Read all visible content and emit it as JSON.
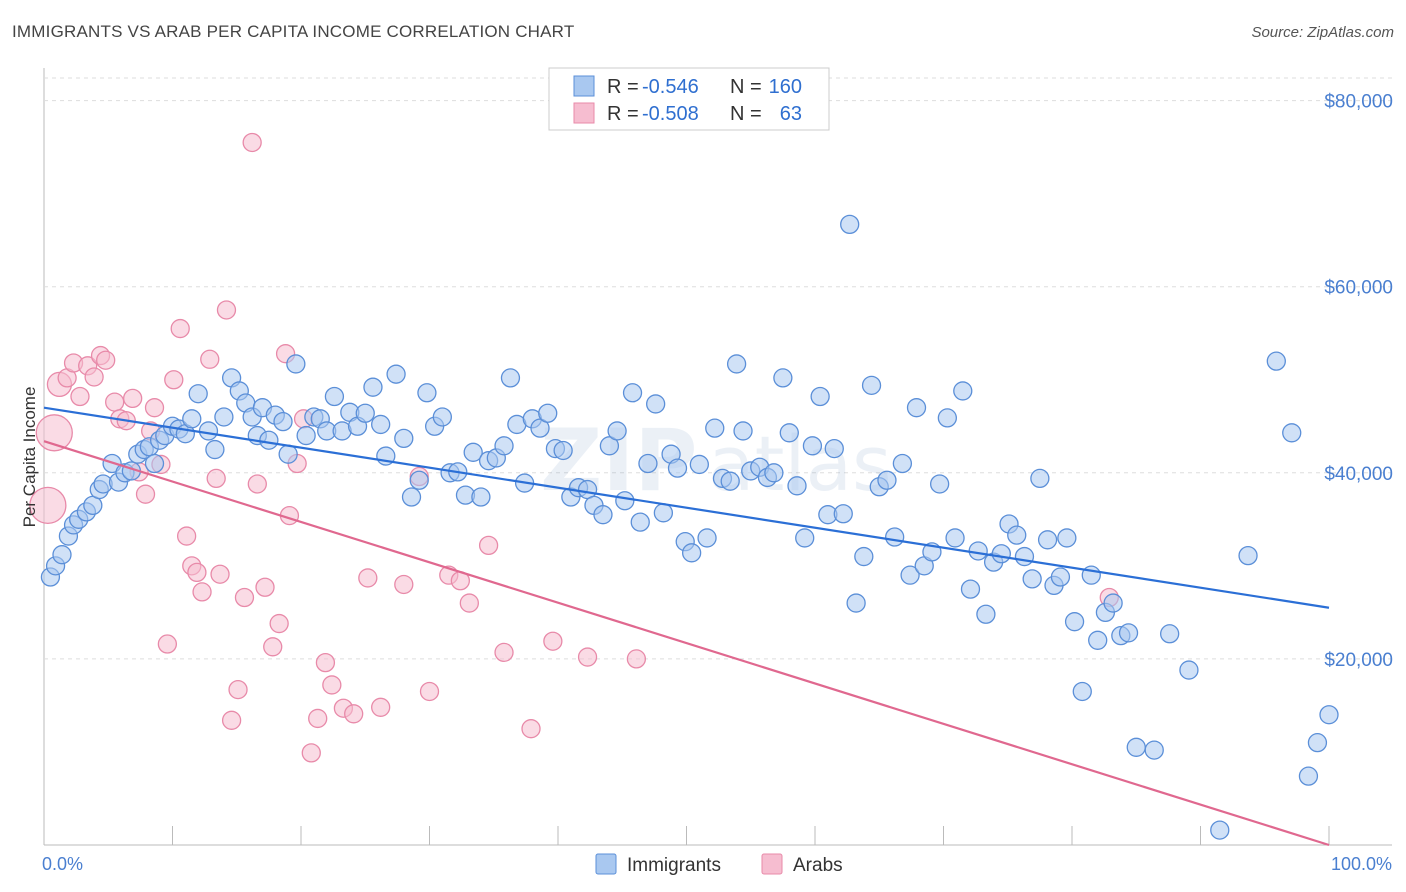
{
  "title": "IMMIGRANTS VS ARAB PER CAPITA INCOME CORRELATION CHART",
  "source": "Source: ZipAtlas.com",
  "watermark": "ZIPatlas",
  "colors": {
    "immigrants_fill": "#a9c8f0",
    "immigrants_stroke": "#5b8fd8",
    "immigrants_line": "#2b6fd6",
    "arabs_fill": "#f6bdd0",
    "arabs_stroke": "#e88aa9",
    "arabs_line": "#e0688f",
    "tick_text": "#4a7fd0",
    "grid": "#dddddd"
  },
  "chart_data": {
    "type": "scatter",
    "title": "IMMIGRANTS VS ARAB PER CAPITA INCOME CORRELATION CHART",
    "xlabel": "",
    "ylabel": "Per Capita Income",
    "xlim": [
      0,
      100
    ],
    "ylim": [
      0,
      82000
    ],
    "x_tick_labels": [
      "0.0%",
      "100.0%"
    ],
    "y_ticks": [
      20000,
      40000,
      60000,
      80000
    ],
    "y_tick_labels": [
      "$20,000",
      "$40,000",
      "$60,000",
      "$80,000"
    ],
    "grid": "horizontal dashed",
    "legend_position": "top-center",
    "stats": [
      {
        "label_r": "R =",
        "r": "-0.546",
        "label_n": "N =",
        "n": "160"
      },
      {
        "label_r": "R =",
        "r": "-0.508",
        "label_n": "N =",
        "n": "63"
      }
    ],
    "series": [
      {
        "name": "Immigrants",
        "trend": {
          "x": [
            0,
            100
          ],
          "y": [
            47000,
            25500
          ]
        },
        "points": [
          [
            0.5,
            28800
          ],
          [
            0.9,
            30000
          ],
          [
            1.4,
            31200
          ],
          [
            1.9,
            33200
          ],
          [
            2.3,
            34400
          ],
          [
            2.7,
            35000
          ],
          [
            3.3,
            35800
          ],
          [
            3.8,
            36500
          ],
          [
            4.3,
            38200
          ],
          [
            4.6,
            38800
          ],
          [
            5.3,
            41000
          ],
          [
            5.8,
            39000
          ],
          [
            6.3,
            40000
          ],
          [
            6.8,
            40200
          ],
          [
            7.3,
            42000
          ],
          [
            7.8,
            42500
          ],
          [
            8.2,
            42800
          ],
          [
            8.6,
            41000
          ],
          [
            9.0,
            43500
          ],
          [
            9.4,
            44000
          ],
          [
            10.0,
            45000
          ],
          [
            10.5,
            44700
          ],
          [
            11.0,
            44200
          ],
          [
            11.5,
            45800
          ],
          [
            12.0,
            48500
          ],
          [
            12.8,
            44500
          ],
          [
            13.3,
            42500
          ],
          [
            14.0,
            46000
          ],
          [
            14.6,
            50200
          ],
          [
            15.2,
            48800
          ],
          [
            15.7,
            47500
          ],
          [
            16.2,
            46000
          ],
          [
            16.6,
            44000
          ],
          [
            17.0,
            47000
          ],
          [
            17.5,
            43500
          ],
          [
            18.0,
            46200
          ],
          [
            18.6,
            45500
          ],
          [
            19.0,
            42000
          ],
          [
            19.6,
            51700
          ],
          [
            20.4,
            44000
          ],
          [
            21.0,
            46000
          ],
          [
            21.5,
            45800
          ],
          [
            22.0,
            44500
          ],
          [
            22.6,
            48200
          ],
          [
            23.2,
            44500
          ],
          [
            23.8,
            46500
          ],
          [
            24.4,
            45000
          ],
          [
            25.0,
            46400
          ],
          [
            25.6,
            49200
          ],
          [
            26.2,
            45200
          ],
          [
            26.6,
            41800
          ],
          [
            27.4,
            50600
          ],
          [
            28.0,
            43700
          ],
          [
            28.6,
            37400
          ],
          [
            29.2,
            39200
          ],
          [
            29.8,
            48600
          ],
          [
            30.4,
            45000
          ],
          [
            31.0,
            46000
          ],
          [
            31.6,
            40000
          ],
          [
            32.2,
            40100
          ],
          [
            32.8,
            37600
          ],
          [
            33.4,
            42200
          ],
          [
            34.0,
            37400
          ],
          [
            34.6,
            41300
          ],
          [
            35.2,
            41600
          ],
          [
            35.8,
            42900
          ],
          [
            36.3,
            50200
          ],
          [
            36.8,
            45200
          ],
          [
            37.4,
            38900
          ],
          [
            38.0,
            45800
          ],
          [
            38.6,
            44800
          ],
          [
            39.2,
            46400
          ],
          [
            39.8,
            42600
          ],
          [
            40.4,
            42400
          ],
          [
            41.0,
            37400
          ],
          [
            41.6,
            38400
          ],
          [
            42.3,
            38200
          ],
          [
            42.8,
            36500
          ],
          [
            43.5,
            35500
          ],
          [
            44.0,
            42900
          ],
          [
            44.6,
            44500
          ],
          [
            45.2,
            37000
          ],
          [
            45.8,
            48600
          ],
          [
            46.4,
            34700
          ],
          [
            47.0,
            41000
          ],
          [
            47.6,
            47400
          ],
          [
            48.2,
            35700
          ],
          [
            48.8,
            42000
          ],
          [
            49.3,
            40500
          ],
          [
            49.9,
            32600
          ],
          [
            50.4,
            31400
          ],
          [
            51.0,
            40900
          ],
          [
            51.6,
            33000
          ],
          [
            52.2,
            44800
          ],
          [
            52.8,
            39400
          ],
          [
            53.4,
            39100
          ],
          [
            53.9,
            51700
          ],
          [
            54.4,
            44500
          ],
          [
            55.0,
            40200
          ],
          [
            55.7,
            40600
          ],
          [
            56.3,
            39500
          ],
          [
            56.8,
            40000
          ],
          [
            57.5,
            50200
          ],
          [
            58.0,
            44300
          ],
          [
            58.6,
            38600
          ],
          [
            59.2,
            33000
          ],
          [
            59.8,
            42900
          ],
          [
            60.4,
            48200
          ],
          [
            61.0,
            35500
          ],
          [
            61.5,
            42600
          ],
          [
            62.2,
            35600
          ],
          [
            62.7,
            66700
          ],
          [
            63.2,
            26000
          ],
          [
            63.8,
            31000
          ],
          [
            64.4,
            49400
          ],
          [
            65.0,
            38500
          ],
          [
            65.6,
            39200
          ],
          [
            66.2,
            33100
          ],
          [
            66.8,
            41000
          ],
          [
            67.4,
            29000
          ],
          [
            67.9,
            47000
          ],
          [
            68.5,
            30000
          ],
          [
            69.1,
            31500
          ],
          [
            69.7,
            38800
          ],
          [
            70.3,
            45900
          ],
          [
            70.9,
            33000
          ],
          [
            71.5,
            48800
          ],
          [
            72.1,
            27500
          ],
          [
            72.7,
            31600
          ],
          [
            73.3,
            24800
          ],
          [
            73.9,
            30400
          ],
          [
            74.5,
            31300
          ],
          [
            75.1,
            34500
          ],
          [
            75.7,
            33300
          ],
          [
            76.3,
            31000
          ],
          [
            76.9,
            28600
          ],
          [
            77.5,
            39400
          ],
          [
            78.1,
            32800
          ],
          [
            78.6,
            27900
          ],
          [
            79.1,
            28800
          ],
          [
            79.6,
            33000
          ],
          [
            80.2,
            24000
          ],
          [
            80.8,
            16500
          ],
          [
            81.5,
            29000
          ],
          [
            82.0,
            22000
          ],
          [
            82.6,
            25000
          ],
          [
            83.2,
            26000
          ],
          [
            83.8,
            22500
          ],
          [
            84.4,
            22800
          ],
          [
            85.0,
            10500
          ],
          [
            86.4,
            10200
          ],
          [
            87.6,
            22700
          ],
          [
            89.1,
            18800
          ],
          [
            91.5,
            1600
          ],
          [
            93.7,
            31100
          ],
          [
            95.9,
            52000
          ],
          [
            97.1,
            44300
          ],
          [
            98.4,
            7400
          ],
          [
            99.1,
            11000
          ],
          [
            100.0,
            14000
          ]
        ]
      },
      {
        "name": "Arabs",
        "trend": {
          "x": [
            0,
            100
          ],
          "y": [
            43400,
            0
          ]
        },
        "points": [
          [
            0.3,
            36500
          ],
          [
            0.8,
            44300
          ],
          [
            1.2,
            49500
          ],
          [
            1.8,
            50200
          ],
          [
            2.3,
            51800
          ],
          [
            2.8,
            48200
          ],
          [
            3.4,
            51500
          ],
          [
            3.9,
            50300
          ],
          [
            4.4,
            52600
          ],
          [
            4.8,
            52100
          ],
          [
            5.5,
            47600
          ],
          [
            5.9,
            45800
          ],
          [
            6.4,
            45600
          ],
          [
            6.9,
            48000
          ],
          [
            7.4,
            40100
          ],
          [
            7.9,
            37700
          ],
          [
            8.3,
            44500
          ],
          [
            8.6,
            47000
          ],
          [
            9.1,
            40900
          ],
          [
            9.6,
            21600
          ],
          [
            10.1,
            50000
          ],
          [
            10.6,
            55500
          ],
          [
            11.1,
            33200
          ],
          [
            11.5,
            30000
          ],
          [
            11.9,
            29300
          ],
          [
            12.3,
            27200
          ],
          [
            12.9,
            52200
          ],
          [
            13.4,
            39400
          ],
          [
            13.7,
            29100
          ],
          [
            14.2,
            57500
          ],
          [
            14.6,
            13400
          ],
          [
            15.1,
            16700
          ],
          [
            15.6,
            26600
          ],
          [
            16.2,
            75500
          ],
          [
            16.6,
            38800
          ],
          [
            17.2,
            27700
          ],
          [
            17.8,
            21300
          ],
          [
            18.3,
            23800
          ],
          [
            18.8,
            52800
          ],
          [
            19.1,
            35400
          ],
          [
            19.7,
            41000
          ],
          [
            20.2,
            45800
          ],
          [
            20.8,
            9900
          ],
          [
            21.3,
            13600
          ],
          [
            21.9,
            19600
          ],
          [
            22.4,
            17200
          ],
          [
            23.3,
            14700
          ],
          [
            24.1,
            14100
          ],
          [
            25.2,
            28700
          ],
          [
            26.2,
            14800
          ],
          [
            28.0,
            28000
          ],
          [
            29.2,
            39600
          ],
          [
            30.0,
            16500
          ],
          [
            31.5,
            29000
          ],
          [
            32.4,
            28400
          ],
          [
            33.1,
            26000
          ],
          [
            34.6,
            32200
          ],
          [
            35.8,
            20700
          ],
          [
            37.9,
            12500
          ],
          [
            39.6,
            21900
          ],
          [
            42.3,
            20200
          ],
          [
            46.1,
            20000
          ],
          [
            82.9,
            26600
          ]
        ]
      }
    ]
  },
  "legend": {
    "items": [
      "Immigrants",
      "Arabs"
    ]
  }
}
